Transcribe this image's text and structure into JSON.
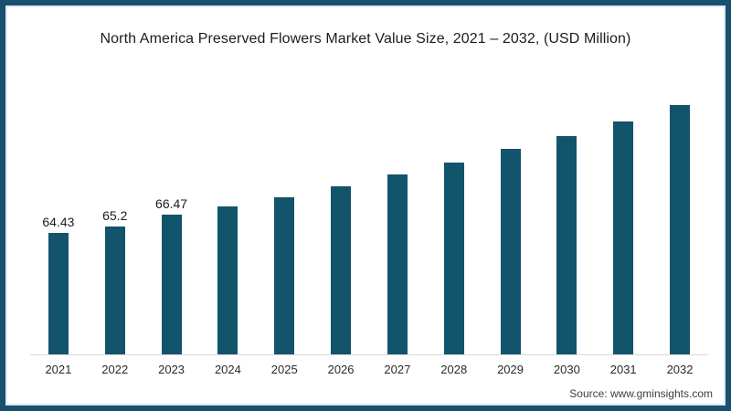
{
  "chart_data": {
    "type": "bar",
    "title": "North America Preserved Flowers Market Value Size, 2021 – 2032, (USD Million)",
    "categories": [
      "2021",
      "2022",
      "2023",
      "2024",
      "2025",
      "2026",
      "2027",
      "2028",
      "2029",
      "2030",
      "2031",
      "2032"
    ],
    "values": [
      64.43,
      65.2,
      66.47,
      67.4,
      68.4,
      69.6,
      70.9,
      72.2,
      73.7,
      75.1,
      76.7,
      78.5
    ],
    "data_labels": [
      "64.43",
      "65.2",
      "66.47",
      "",
      "",
      "",
      "",
      "",
      "",
      "",
      "",
      ""
    ],
    "xlabel": "",
    "ylabel": "",
    "ylim": [
      51,
      79
    ],
    "grid": false,
    "legend": "none",
    "bar_color": "#11546b",
    "axis_line_color": "#d9d9d9"
  },
  "source": "Source: www.gminsights.com",
  "colors": {
    "frame_border": "#1a506d",
    "frame_inner_line": "#d9eaf2",
    "text": "#1c1c1c"
  }
}
